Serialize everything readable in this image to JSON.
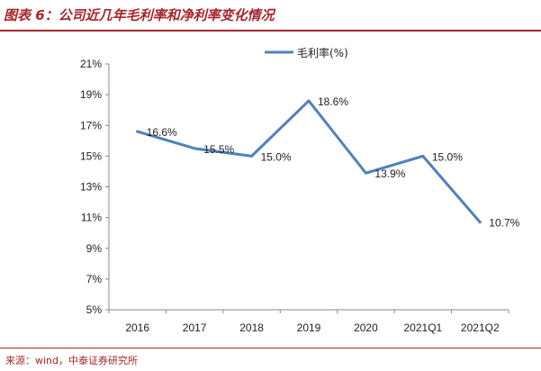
{
  "header": {
    "title": "图表 6：公司近几年毛利率和净利率变化情况"
  },
  "footer": {
    "source": "来源：wind，中泰证券研究所"
  },
  "colors": {
    "accent": "#a8262a",
    "series": "#4f81bd"
  },
  "chart_data": {
    "type": "line",
    "categories": [
      "2016",
      "2017",
      "2018",
      "2019",
      "2020",
      "2021Q1",
      "2021Q2"
    ],
    "series": [
      {
        "name": "毛利率(%)",
        "values": [
          16.6,
          15.5,
          15.0,
          18.6,
          13.9,
          15.0,
          10.7
        ]
      }
    ],
    "data_labels": [
      "16.6%",
      "15.5%",
      "15.0%",
      "18.6%",
      "13.9%",
      "15.0%",
      "10.7%"
    ],
    "y_ticks": [
      "5%",
      "7%",
      "9%",
      "11%",
      "13%",
      "15%",
      "17%",
      "19%",
      "21%"
    ],
    "ylim": [
      5,
      21
    ],
    "y_step": 2,
    "legend_position": "top-center",
    "grid": false
  }
}
